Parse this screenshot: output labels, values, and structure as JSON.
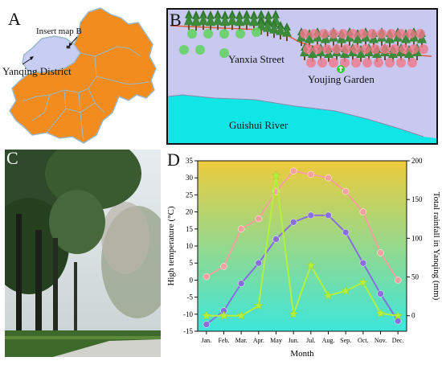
{
  "panels": {
    "a": {
      "letter": "A",
      "insert_label": "Insert map B",
      "district_label": "Yanqing District",
      "colors": {
        "beijing": "#f28c1e",
        "yanqing": "#c8cdf4",
        "border": "#9bb8c8"
      }
    },
    "b": {
      "letter": "B",
      "street_label": "Yanxia Street",
      "garden_label": "Youjing Garden",
      "river_label": "Guishui River",
      "colors": {
        "ground": "#c8c8f0",
        "river": "#10e6e6",
        "tree_green": "#5ed45e",
        "tree_red": "#f0788a"
      }
    },
    "c": {
      "letter": "C",
      "description_icon": "tree-lined-road-photo"
    },
    "d": {
      "letter": "D"
    }
  },
  "chart_data": {
    "type": "line",
    "title": "",
    "xlabel": "Month",
    "ylabel": "High temperature (°C)",
    "ylabel_right": "Total rainfall in Yanqing (mm)",
    "categories": [
      "Jan.",
      "Feb.",
      "Mar.",
      "Apr.",
      "May",
      "Jun.",
      "Jul.",
      "Aug.",
      "Sep.",
      "Oct.",
      "Nov.",
      "Dec."
    ],
    "ylim": [
      -15,
      35
    ],
    "yticks": [
      -15,
      -10,
      -5,
      0,
      5,
      10,
      15,
      20,
      25,
      30,
      35
    ],
    "ylim_right": [
      -20,
      200
    ],
    "yticks_right": [
      0,
      50,
      100,
      150,
      200
    ],
    "series": [
      {
        "key": "high",
        "axis": "left",
        "color": "#f5a0a0",
        "marker": "circle",
        "values": [
          1,
          4,
          15,
          18,
          26,
          32,
          31,
          30,
          26,
          20,
          8,
          0
        ]
      },
      {
        "key": "low",
        "axis": "left",
        "color": "#8a6ee0",
        "marker": "circle",
        "values": [
          -13,
          -9,
          -1,
          5,
          12,
          17,
          19,
          19,
          14,
          5,
          -4,
          -12
        ]
      },
      {
        "key": "rainfall",
        "axis": "right",
        "color": "#b4f03c",
        "marker": "star",
        "values": [
          0,
          0,
          0,
          13,
          181,
          2,
          65,
          26,
          32,
          43,
          3,
          0
        ]
      }
    ],
    "background_gradient": {
      "top": "#eecb3c",
      "bottom": "#3ce6dc"
    }
  }
}
